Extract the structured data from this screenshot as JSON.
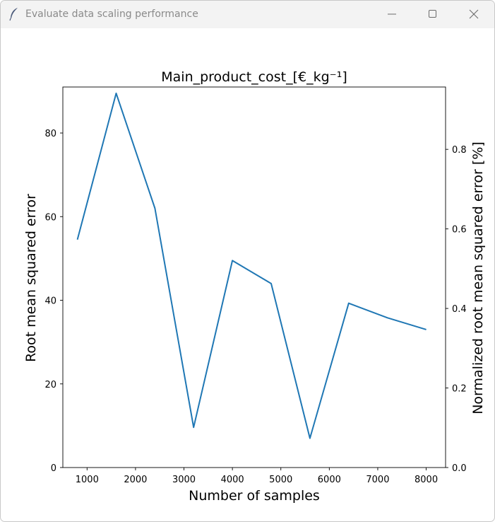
{
  "window": {
    "title": "Evaluate data scaling performance"
  },
  "icons": {
    "app": "feather-icon",
    "minimize": "minimize-icon",
    "maximize": "maximize-icon",
    "close": "close-icon"
  },
  "colors": {
    "line": "#1f77b4",
    "titlebar": "#f3f3f3",
    "title_text": "#8a8a8a"
  },
  "chart_data": {
    "type": "line",
    "title": "Main_product_cost_[€_kg⁻¹]",
    "xlabel": "Number of samples",
    "ylabel": "Root mean squared error",
    "ylabel_right": "Normalized root mean squared error [%]",
    "xlim": [
      500,
      8400
    ],
    "ylim": [
      0,
      91
    ],
    "ylim_right": [
      0,
      0.9568
    ],
    "x_ticks": [
      1000,
      2000,
      3000,
      4000,
      5000,
      6000,
      7000,
      8000
    ],
    "x_tick_labels": [
      "1000",
      "2000",
      "3000",
      "4000",
      "5000",
      "6000",
      "7000",
      "8000"
    ],
    "y_ticks": [
      0,
      20,
      40,
      60,
      80
    ],
    "y_tick_labels": [
      "0",
      "20",
      "40",
      "60",
      "80"
    ],
    "y_right_ticks": [
      0.0,
      0.2,
      0.4,
      0.6,
      0.8
    ],
    "y_right_tick_labels": [
      "0.0",
      "0.2",
      "0.4",
      "0.6",
      "0.8"
    ],
    "grid": false,
    "series": [
      {
        "x": [
          800,
          1600,
          2400,
          3200,
          4000,
          4800,
          5600,
          6400,
          7200,
          8000
        ],
        "values": [
          54.5,
          89.5,
          62.0,
          9.6,
          49.5,
          44.0,
          7.0,
          39.3,
          35.8,
          33.0
        ]
      }
    ]
  }
}
